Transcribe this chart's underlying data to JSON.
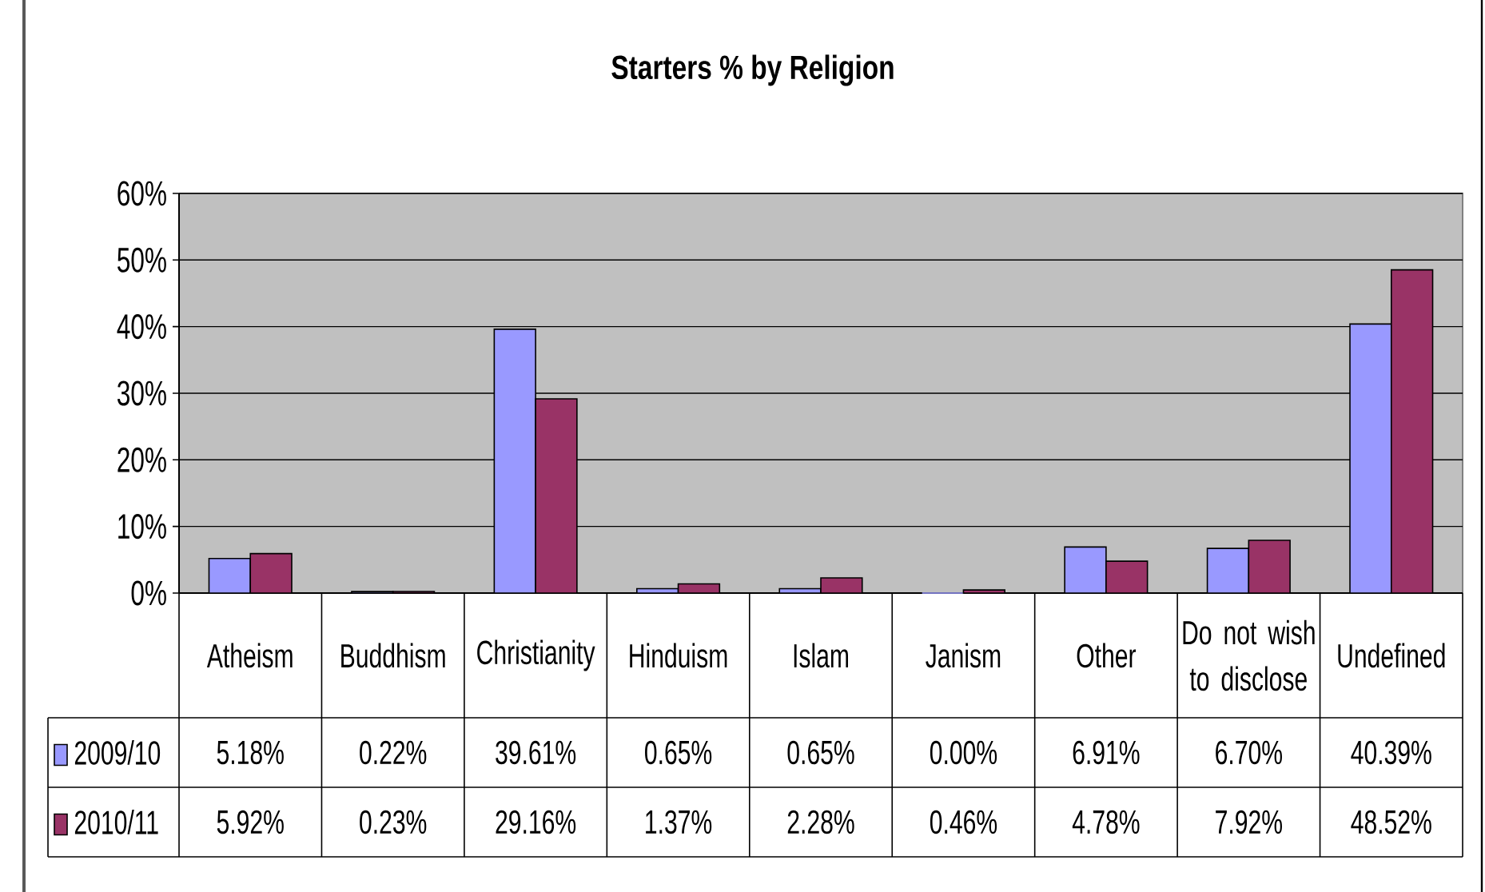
{
  "chart_data": {
    "type": "bar",
    "title": "Starters % by Religion",
    "categories": [
      "Atheism",
      "Buddhism",
      "Christianity",
      "Hinduism",
      "Islam",
      "Janism",
      "Other",
      "Do not wish to disclose",
      "Undefined"
    ],
    "series": [
      {
        "name": "2009/10",
        "color": "#9999ff",
        "values": [
          5.18,
          0.22,
          39.61,
          0.65,
          0.65,
          0.0,
          6.91,
          6.7,
          40.39
        ],
        "value_labels": [
          "5.18%",
          "0.22%",
          "39.61%",
          "0.65%",
          "0.65%",
          "0.00%",
          "6.91%",
          "6.70%",
          "40.39%"
        ]
      },
      {
        "name": "2010/11",
        "color": "#993366",
        "values": [
          5.92,
          0.23,
          29.16,
          1.37,
          2.28,
          0.46,
          4.78,
          7.92,
          48.52
        ],
        "value_labels": [
          "5.92%",
          "0.23%",
          "29.16%",
          "1.37%",
          "2.28%",
          "0.46%",
          "4.78%",
          "7.92%",
          "48.52%"
        ]
      }
    ],
    "ylim": [
      0,
      60
    ],
    "yticks": [
      {
        "value": 0,
        "label": "0%"
      },
      {
        "value": 10,
        "label": "10%"
      },
      {
        "value": 20,
        "label": "20%"
      },
      {
        "value": 30,
        "label": "30%"
      },
      {
        "value": 40,
        "label": "40%"
      },
      {
        "value": 50,
        "label": "50%"
      },
      {
        "value": 60,
        "label": "60%"
      }
    ],
    "grid": "y",
    "legend": "bottom left"
  }
}
